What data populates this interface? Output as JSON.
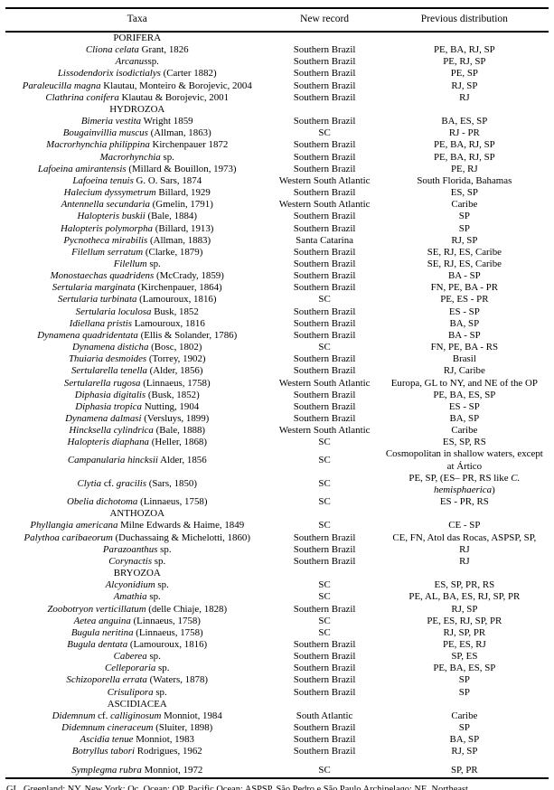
{
  "table": {
    "columns": [
      "Taxa",
      "New record",
      "Previous distribution"
    ],
    "rows": [
      {
        "section": "PORIFERA"
      },
      {
        "taxa": "*Cliona celata* Grant, 1826",
        "new_record": "Southern Brazil",
        "previous_distribution": "PE, BA, RJ, SP"
      },
      {
        "taxa": "*Arcanus*sp.",
        "new_record": "Southern Brazil",
        "previous_distribution": "PE, RJ, SP"
      },
      {
        "taxa": "*Lissodendorix isodictialys* (Carter 1882)",
        "new_record": "Southern Brazil",
        "previous_distribution": "PE, SP"
      },
      {
        "taxa": "*Paraleucilla magna* Klautau, Monteiro & Borojevic, 2004",
        "new_record": "Southern Brazil",
        "previous_distribution": "RJ, SP"
      },
      {
        "taxa": "*Clathrina conifera* Klautau & Borojevic, 2001",
        "new_record": "Southern Brazil",
        "previous_distribution": "RJ"
      },
      {
        "section": "HYDROZOA"
      },
      {
        "taxa": "*Bimeria vestita* Wright 1859",
        "new_record": "Southern Brazil",
        "previous_distribution": "BA, ES, SP"
      },
      {
        "taxa": "*Bougainvillia muscus* (Allman, 1863)",
        "new_record": "SC",
        "previous_distribution": "RJ - PR"
      },
      {
        "taxa": "*Macrorhynchia philippina* Kirchenpauer 1872",
        "new_record": "Southern Brazil",
        "previous_distribution": "PE, BA, RJ, SP"
      },
      {
        "taxa": "*Macrorhynchia* sp.",
        "new_record": "Southern Brazil",
        "previous_distribution": "PE, BA, RJ, SP"
      },
      {
        "taxa": "*Lafoeina amirantensis* (Millard & Bouillon, 1973)",
        "new_record": "Southern Brazil",
        "previous_distribution": "PE, RJ"
      },
      {
        "taxa": "*Lafoeina tenuis* G. O. Sars, 1874",
        "new_record": "Western South Atlantic",
        "previous_distribution": "South Florida, Bahamas"
      },
      {
        "taxa": "*Halecium dyssymetrum* Billard, 1929",
        "new_record": "Southern Brazil",
        "previous_distribution": "ES, SP"
      },
      {
        "taxa": "*Antennella secundaria* (Gmelin, 1791)",
        "new_record": "Western South Atlantic",
        "previous_distribution": "Caribe"
      },
      {
        "taxa": "*Halopteris buskii* (Bale, 1884)",
        "new_record": "Southern Brazil",
        "previous_distribution": "SP"
      },
      {
        "taxa": "*Halopteris polymorpha* (Billard, 1913)",
        "new_record": "Southern Brazil",
        "previous_distribution": "SP"
      },
      {
        "taxa": "*Pycnotheca mirabilis* (Allman, 1883)",
        "new_record": "Santa Catarina",
        "previous_distribution": "RJ, SP"
      },
      {
        "taxa": "*Filellum serratum* (Clarke, 1879)",
        "new_record": "Southern Brazil",
        "previous_distribution": "SE, RJ, ES, Caribe"
      },
      {
        "taxa": "*Filellum* sp.",
        "new_record": "Southern Brazil",
        "previous_distribution": "SE, RJ, ES, Caribe"
      },
      {
        "taxa": "*Monostaechas quadridens* (McCrady, 1859)",
        "new_record": "Southern Brazil",
        "previous_distribution": "BA - SP"
      },
      {
        "taxa": "*Sertularia marginata* (Kirchenpauer, 1864)",
        "new_record": "Southern Brazil",
        "previous_distribution": "FN, PE, BA - PR"
      },
      {
        "taxa": "*Sertularia turbinata* (Lamouroux, 1816)",
        "new_record": "SC",
        "previous_distribution": "PE, ES - PR"
      },
      {
        "taxa": "*Sertularia loculosa* Busk, 1852",
        "new_record": "Southern Brazil",
        "previous_distribution": "ES - SP"
      },
      {
        "taxa": "*Idiellana pristis* Lamouroux, 1816",
        "new_record": "Southern Brazil",
        "previous_distribution": "BA, SP"
      },
      {
        "taxa": "*Dynamena quadridentata* (Ellis & Solander, 1786)",
        "new_record": "Southern Brazil",
        "previous_distribution": "BA - SP"
      },
      {
        "taxa": "*Dynamena disticha* (Bosc, 1802)",
        "new_record": "SC",
        "previous_distribution": "FN, PE, BA - RS"
      },
      {
        "taxa": "*Thuiaria desmoides* (Torrey, 1902)",
        "new_record": "Southern Brazil",
        "previous_distribution": "Brasil"
      },
      {
        "taxa": "*Sertularella tenella* (Alder, 1856)",
        "new_record": "Southern Brazil",
        "previous_distribution": "RJ, Caribe"
      },
      {
        "taxa": "*Sertularella rugosa* (Linnaeus, 1758)",
        "new_record": "Western South Atlantic",
        "previous_distribution": "Europa, GL to NY, and NE of the OP"
      },
      {
        "taxa": "*Diphasia digitalis* (Busk, 1852)",
        "new_record": "Southern Brazil",
        "previous_distribution": "PE, BA, ES, SP"
      },
      {
        "taxa": "*Diphasia tropica* Nutting, 1904",
        "new_record": "Southern Brazil",
        "previous_distribution": "ES - SP"
      },
      {
        "taxa": "*Dynamena dalmasi* (Versluys, 1899)",
        "new_record": "Southern Brazil",
        "previous_distribution": "BA, SP"
      },
      {
        "taxa": "*Hincksella cylindrica* (Bale, 1888)",
        "new_record": "Western South Atlantic",
        "previous_distribution": "Caribe"
      },
      {
        "taxa": "*Halopteris diaphana* (Heller, 1868)",
        "new_record": "SC",
        "previous_distribution": "ES, SP, RS"
      },
      {
        "taxa": "*Campanularia hincksii* Alder, 1856",
        "new_record": "SC",
        "previous_distribution": "Cosmopolitan in shallow waters, except at Ártico"
      },
      {
        "taxa": "*Clytia* cf. *gracilis* (Sars, 1850)",
        "new_record": "SC",
        "previous_distribution": "PE, SP, (ES– PR, RS like *C. hemisphaerica*)"
      },
      {
        "taxa": "*Obelia dichotoma* (Linnaeus, 1758)",
        "new_record": "SC",
        "previous_distribution": "ES - PR, RS"
      },
      {
        "section": "ANTHOZOA"
      },
      {
        "taxa": "*Phyllangia americana* Milne Edwards & Haime, 1849",
        "new_record": "SC",
        "previous_distribution": "CE - SP"
      },
      {
        "taxa": "*Palythoa caribaeorum* (Duchassaing & Michelotti, 1860)",
        "new_record": "Southern Brazil",
        "previous_distribution": "CE, FN, Atol das Rocas, ASPSP, SP,"
      },
      {
        "taxa": "*Parazoanthus* sp.",
        "new_record": "Southern Brazil",
        "previous_distribution": "RJ"
      },
      {
        "taxa": "*Corynactis* sp.",
        "new_record": "Southern Brazil",
        "previous_distribution": "RJ"
      },
      {
        "section": "BRYOZOA"
      },
      {
        "taxa": "*Alcyonidium* sp.",
        "new_record": "SC",
        "previous_distribution": "ES, SP, PR, RS"
      },
      {
        "taxa": "*Amathia* sp.",
        "new_record": "SC",
        "previous_distribution": "PE, AL, BA, ES, RJ, SP, PR"
      },
      {
        "taxa": "*Zoobotryon verticillatum* (delle Chiaje, 1828)",
        "new_record": "Southern Brazil",
        "previous_distribution": "RJ, SP"
      },
      {
        "taxa": "*Aetea anguina* (Linnaeus, 1758)",
        "new_record": "SC",
        "previous_distribution": "PE, ES, RJ, SP, PR"
      },
      {
        "taxa": "*Bugula neritina* (Linnaeus, 1758)",
        "new_record": "SC",
        "previous_distribution": "RJ, SP, PR"
      },
      {
        "taxa": "*Bugula dentata* (Lamouroux, 1816)",
        "new_record": "Southern Brazil",
        "previous_distribution": "PE, ES, RJ"
      },
      {
        "taxa": "*Caberea* sp.",
        "new_record": "Southern Brazil",
        "previous_distribution": "SP, ES"
      },
      {
        "taxa": "*Celleporaria* sp.",
        "new_record": "Southern Brazil",
        "previous_distribution": "PE, BA, ES, SP"
      },
      {
        "taxa": "*Schizoporella errata* (Waters, 1878)",
        "new_record": "Southern Brazil",
        "previous_distribution": "SP"
      },
      {
        "taxa": "*Crisulipora* sp.",
        "new_record": "Southern Brazil",
        "previous_distribution": "SP"
      },
      {
        "section": "ASCIDIACEA"
      },
      {
        "taxa": "*Didemnum* cf. *calliginosum* Monniot, 1984",
        "new_record": "South Atlantic",
        "previous_distribution": "Caribe"
      },
      {
        "taxa": "*Didemnum cineraceum* (Sluiter, 1898)",
        "new_record": "Southern Brazil",
        "previous_distribution": "SP"
      },
      {
        "taxa": "*Ascidia tenue* Monniot, 1983",
        "new_record": "Southern Brazil",
        "previous_distribution": "BA, SP"
      },
      {
        "taxa": "*Botryllus tabori* Rodrigues, 1962",
        "new_record": "Southern Brazil",
        "previous_distribution": "RJ, SP"
      },
      {
        "taxa": "*Symplegma rubra* Monniot, 1972",
        "new_record": "SC",
        "previous_distribution": "SP, PR",
        "spaced": true
      }
    ]
  },
  "footnote": "GL, Greenland; NY, New York; Oc, Ocean; OP, Pacific Ocean; ASPSP, São Pedro e São Paulo Archipelago; NE, Northeast."
}
